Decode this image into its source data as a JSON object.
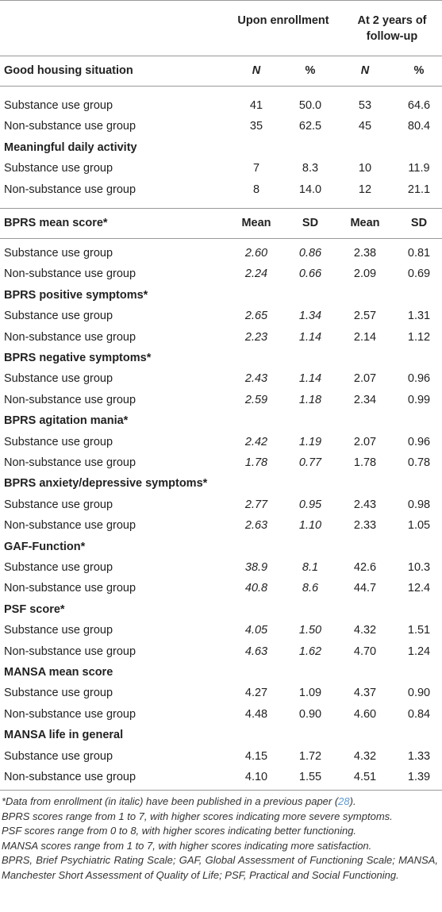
{
  "table": {
    "column_groups": [
      "Upon enrollment",
      "At 2 years of follow-up"
    ],
    "blocks": [
      {
        "columns": [
          "N",
          "%",
          "N",
          "%"
        ],
        "groups": [
          {
            "title": "Good housing situation",
            "italic_enrollment": false,
            "rows": [
              [
                "Substance use group",
                "41",
                "50.0",
                "53",
                "64.6"
              ],
              [
                "Non-substance use group",
                "35",
                "62.5",
                "45",
                "80.4"
              ]
            ]
          },
          {
            "title": "Meaningful daily activity",
            "italic_enrollment": false,
            "rows": [
              [
                "Substance use group",
                "7",
                "8.3",
                "10",
                "11.9"
              ],
              [
                "Non-substance use group",
                "8",
                "14.0",
                "12",
                "21.1"
              ]
            ]
          }
        ]
      },
      {
        "columns": [
          "Mean",
          "SD",
          "Mean",
          "SD"
        ],
        "groups": [
          {
            "title": "BPRS mean score*",
            "italic_enrollment": true,
            "rows": [
              [
                "Substance use group",
                "2.60",
                "0.86",
                "2.38",
                "0.81"
              ],
              [
                "Non-substance use group",
                "2.24",
                "0.66",
                "2.09",
                "0.69"
              ]
            ]
          },
          {
            "title": "BPRS positive symptoms*",
            "italic_enrollment": true,
            "rows": [
              [
                "Substance use group",
                "2.65",
                "1.34",
                "2.57",
                "1.31"
              ],
              [
                "Non-substance use group",
                "2.23",
                "1.14",
                "2.14",
                "1.12"
              ]
            ]
          },
          {
            "title": "BPRS negative symptoms*",
            "italic_enrollment": true,
            "rows": [
              [
                "Substance use group",
                "2.43",
                "1.14",
                "2.07",
                "0.96"
              ],
              [
                "Non-substance use group",
                "2.59",
                "1.18",
                "2.34",
                "0.99"
              ]
            ]
          },
          {
            "title": "BPRS agitation mania*",
            "italic_enrollment": true,
            "rows": [
              [
                "Substance use group",
                "2.42",
                "1.19",
                "2.07",
                "0.96"
              ],
              [
                "Non-substance use group",
                "1.78",
                "0.77",
                "1.78",
                "0.78"
              ]
            ]
          },
          {
            "title": "BPRS anxiety/depressive symptoms*",
            "italic_enrollment": true,
            "rows": [
              [
                "Substance use group",
                "2.77",
                "0.95",
                "2.43",
                "0.98"
              ],
              [
                "Non-substance use group",
                "2.63",
                "1.10",
                "2.33",
                "1.05"
              ]
            ]
          },
          {
            "title": "GAF-Function*",
            "italic_enrollment": true,
            "rows": [
              [
                "Substance use group",
                "38.9",
                "8.1",
                "42.6",
                "10.3"
              ],
              [
                "Non-substance use group",
                "40.8",
                "8.6",
                "44.7",
                "12.4"
              ]
            ]
          },
          {
            "title": "PSF score*",
            "italic_enrollment": true,
            "rows": [
              [
                "Substance use group",
                "4.05",
                "1.50",
                "4.32",
                "1.51"
              ],
              [
                "Non-substance use group",
                "4.63",
                "1.62",
                "4.70",
                "1.24"
              ]
            ]
          },
          {
            "title": "MANSA mean score",
            "italic_enrollment": false,
            "rows": [
              [
                "Substance use group",
                "4.27",
                "1.09",
                "4.37",
                "0.90"
              ],
              [
                "Non-substance use group",
                "4.48",
                "0.90",
                "4.60",
                "0.84"
              ]
            ]
          },
          {
            "title": "MANSA life in general",
            "italic_enrollment": false,
            "rows": [
              [
                "Substance use group",
                "4.15",
                "1.72",
                "4.32",
                "1.33"
              ],
              [
                "Non-substance use group",
                "4.10",
                "1.55",
                "4.51",
                "1.39"
              ]
            ]
          }
        ]
      }
    ],
    "footnote_first": {
      "text": "*Data from enrollment (in italic) have been published in a previous paper (",
      "ref": "28",
      "after": ")."
    },
    "footnotes": [
      "BPRS scores range from 1 to 7, with higher scores indicating more severe symptoms.",
      "PSF scores range from 0 to 8, with higher scores indicating better functioning.",
      "MANSA scores range from 1 to 7, with higher scores indicating more satisfaction.",
      "BPRS, Brief Psychiatric Rating Scale; GAF, Global Assessment of Functioning Scale; MANSA, Manchester Short Assessment of Quality of Life; PSF, Practical and Social Functioning."
    ]
  }
}
